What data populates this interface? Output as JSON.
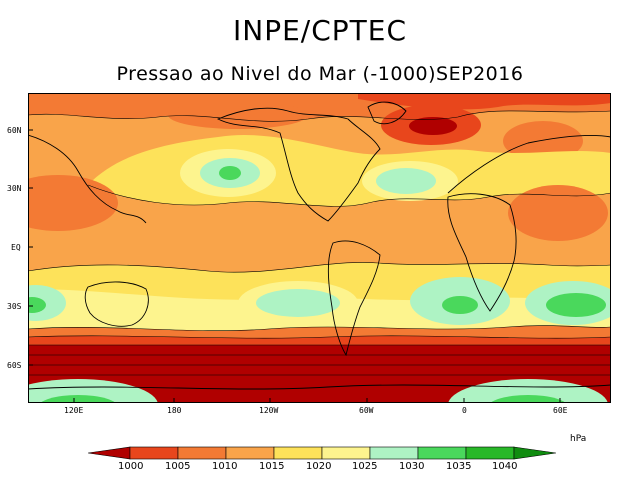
{
  "header": {
    "title": "INPE/CPTEC",
    "subtitle": "Pressao ao Nivel do Mar (-1000)SEP2016"
  },
  "axes": {
    "lat_labels": [
      "60N",
      "30N",
      "EQ",
      "30S",
      "60S"
    ],
    "lon_labels": [
      "120E",
      "180",
      "120W",
      "60W",
      "0",
      "60E"
    ]
  },
  "legend": {
    "unit": "hPa",
    "levels": [
      "1000",
      "1005",
      "1010",
      "1015",
      "1020",
      "1025",
      "1030",
      "1035",
      "1040"
    ],
    "colors": [
      "#b00000",
      "#e8461c",
      "#f37a34",
      "#f9a44a",
      "#fde25a",
      "#fdf48e",
      "#aef3c4",
      "#4ad85c",
      "#28b828",
      "#108c10"
    ]
  }
}
